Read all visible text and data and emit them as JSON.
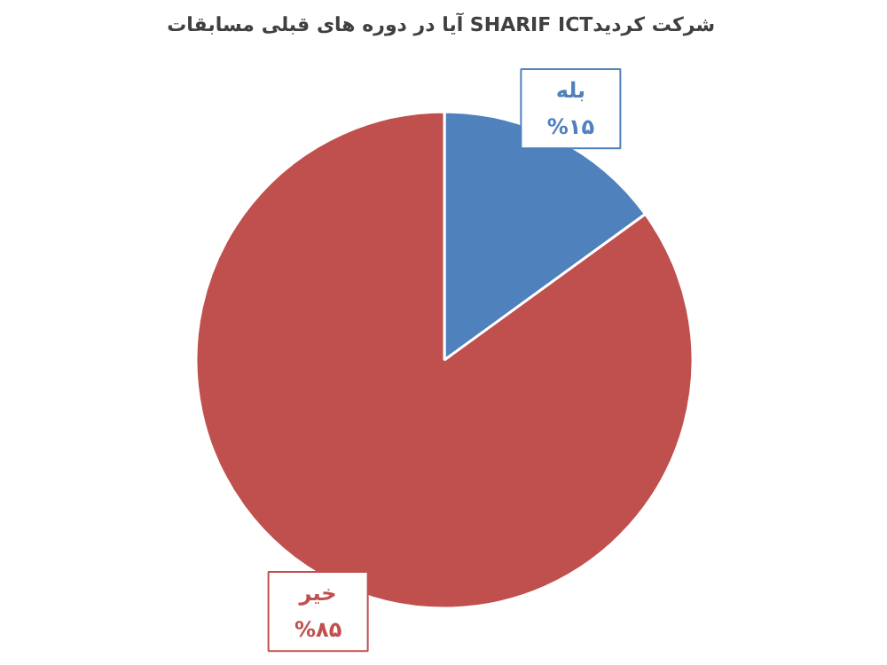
{
  "chart_data": {
    "type": "pie",
    "title": "آیا در دوره های قبلی مسابقات  SHARIF ICTشرکت کردید",
    "categories": [
      "بله",
      "خیر"
    ],
    "values": [
      15,
      85
    ],
    "colors": [
      "#4f81bd",
      "#c0504d"
    ],
    "value_labels": [
      "%۱۵",
      "%۸۵"
    ]
  }
}
